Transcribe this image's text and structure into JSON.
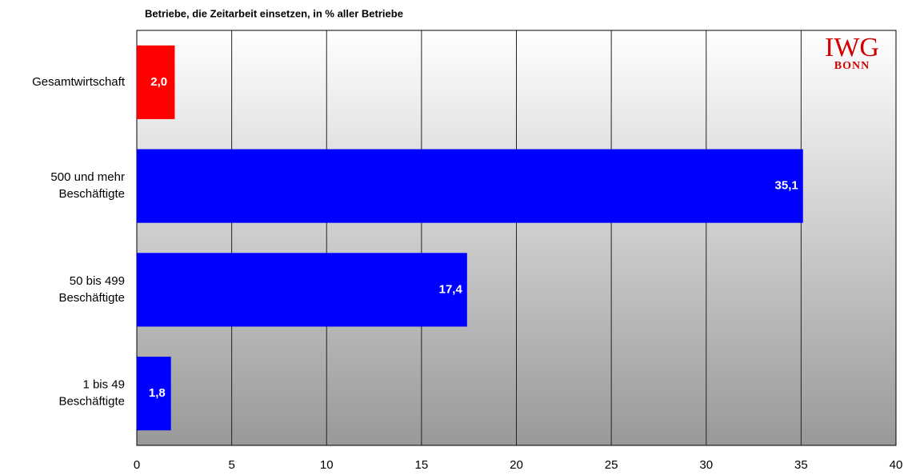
{
  "chart_data": {
    "type": "barh",
    "title": "Betriebe, die Zeitarbeit einsetzen, in % aller Betriebe",
    "categories": [
      "Gesamtwirtschaft",
      "500 und mehr\nBeschäftigte",
      "50 bis 499\nBeschäftigte",
      "1 bis 49\nBeschäftigte"
    ],
    "values": [
      2.0,
      35.1,
      17.4,
      1.8
    ],
    "value_labels": [
      "2,0",
      "35,1",
      "17,4",
      "1,8"
    ],
    "colors": [
      "#ff0000",
      "#0000ff",
      "#0000ff",
      "#0000ff"
    ],
    "xlim": [
      0,
      40
    ],
    "xticks": [
      0,
      5,
      10,
      15,
      20,
      25,
      30,
      35,
      40
    ],
    "grid": true,
    "logo": [
      "IWG",
      "BONN"
    ]
  }
}
